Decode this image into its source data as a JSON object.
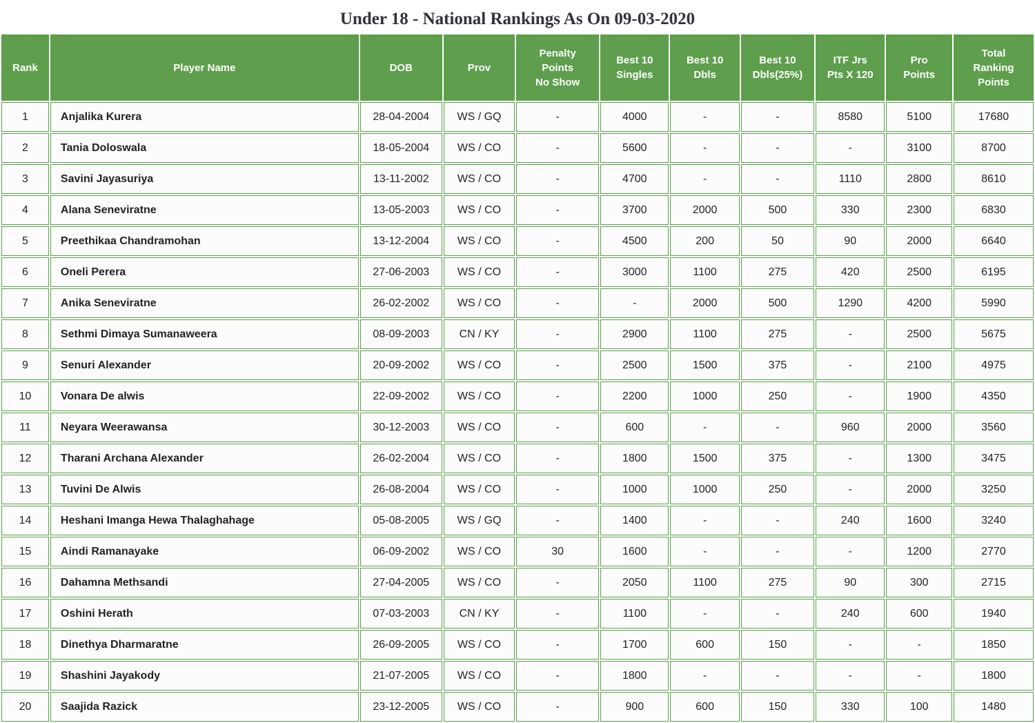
{
  "title": "Under 18 - National Rankings As On 09-03-2020",
  "colors": {
    "header_bg": "#5e9e4d",
    "border_green": "#55a046",
    "cell_bg": "#fcfcfc",
    "title_color": "#32323a"
  },
  "table": {
    "columns": [
      "Rank",
      "Player Name",
      "DOB",
      "Prov",
      "Penalty\nPoints\nNo Show",
      "Best 10\nSingles",
      "Best 10\nDbls",
      "Best 10\nDbls(25%)",
      "ITF Jrs\nPts X 120",
      "Pro\nPoints",
      "Total\nRanking\nPoints"
    ],
    "column_widths_pct": [
      4.67,
      30.27,
      8.07,
      7.0,
      8.13,
      6.73,
      6.8,
      7.2,
      6.8,
      6.47,
      7.86
    ],
    "rows": [
      [
        "1",
        "Anjalika Kurera",
        "28-04-2004",
        "WS / GQ",
        "-",
        "4000",
        "-",
        "-",
        "8580",
        "5100",
        "17680"
      ],
      [
        "2",
        "Tania Doloswala",
        "18-05-2004",
        "WS / CO",
        "-",
        "5600",
        "-",
        "-",
        "-",
        "3100",
        "8700"
      ],
      [
        "3",
        "Savini Jayasuriya",
        "13-11-2002",
        "WS / CO",
        "-",
        "4700",
        "-",
        "-",
        "1110",
        "2800",
        "8610"
      ],
      [
        "4",
        "Alana Seneviratne",
        "13-05-2003",
        "WS / CO",
        "-",
        "3700",
        "2000",
        "500",
        "330",
        "2300",
        "6830"
      ],
      [
        "5",
        "Preethikaa Chandramohan",
        "13-12-2004",
        "WS / CO",
        "-",
        "4500",
        "200",
        "50",
        "90",
        "2000",
        "6640"
      ],
      [
        "6",
        "Oneli Perera",
        "27-06-2003",
        "WS / CO",
        "-",
        "3000",
        "1100",
        "275",
        "420",
        "2500",
        "6195"
      ],
      [
        "7",
        "Anika Seneviratne",
        "26-02-2002",
        "WS / CO",
        "-",
        "-",
        "2000",
        "500",
        "1290",
        "4200",
        "5990"
      ],
      [
        "8",
        "Sethmi Dimaya Sumanaweera",
        "08-09-2003",
        "CN / KY",
        "-",
        "2900",
        "1100",
        "275",
        "-",
        "2500",
        "5675"
      ],
      [
        "9",
        "Senuri Alexander",
        "20-09-2002",
        "WS / CO",
        "-",
        "2500",
        "1500",
        "375",
        "-",
        "2100",
        "4975"
      ],
      [
        "10",
        "Vonara De alwis",
        "22-09-2002",
        "WS / CO",
        "-",
        "2200",
        "1000",
        "250",
        "-",
        "1900",
        "4350"
      ],
      [
        "11",
        "Neyara Weerawansa",
        "30-12-2003",
        "WS / CO",
        "-",
        "600",
        "-",
        "-",
        "960",
        "2000",
        "3560"
      ],
      [
        "12",
        "Tharani Archana Alexander",
        "26-02-2004",
        "WS / CO",
        "-",
        "1800",
        "1500",
        "375",
        "-",
        "1300",
        "3475"
      ],
      [
        "13",
        "Tuvini De Alwis",
        "26-08-2004",
        "WS / CO",
        "-",
        "1000",
        "1000",
        "250",
        "-",
        "2000",
        "3250"
      ],
      [
        "14",
        "Heshani Imanga Hewa Thalaghahage",
        "05-08-2005",
        "WS / GQ",
        "-",
        "1400",
        "-",
        "-",
        "240",
        "1600",
        "3240"
      ],
      [
        "15",
        "Aindi Ramanayake",
        "06-09-2002",
        "WS / CO",
        "30",
        "1600",
        "-",
        "-",
        "-",
        "1200",
        "2770"
      ],
      [
        "16",
        "Dahamna Methsandi",
        "27-04-2005",
        "WS / CO",
        "-",
        "2050",
        "1100",
        "275",
        "90",
        "300",
        "2715"
      ],
      [
        "17",
        "Oshini Herath",
        "07-03-2003",
        "CN / KY",
        "-",
        "1100",
        "-",
        "-",
        "240",
        "600",
        "1940"
      ],
      [
        "18",
        "Dinethya Dharmaratne",
        "26-09-2005",
        "WS / CO",
        "-",
        "1700",
        "600",
        "150",
        "-",
        "-",
        "1850"
      ],
      [
        "19",
        "Shashini Jayakody",
        "21-07-2005",
        "WS / CO",
        "-",
        "1800",
        "-",
        "-",
        "-",
        "-",
        "1800"
      ],
      [
        "20",
        "Saajida Razick",
        "23-12-2005",
        "WS / CO",
        "-",
        "900",
        "600",
        "150",
        "330",
        "100",
        "1480"
      ]
    ]
  }
}
